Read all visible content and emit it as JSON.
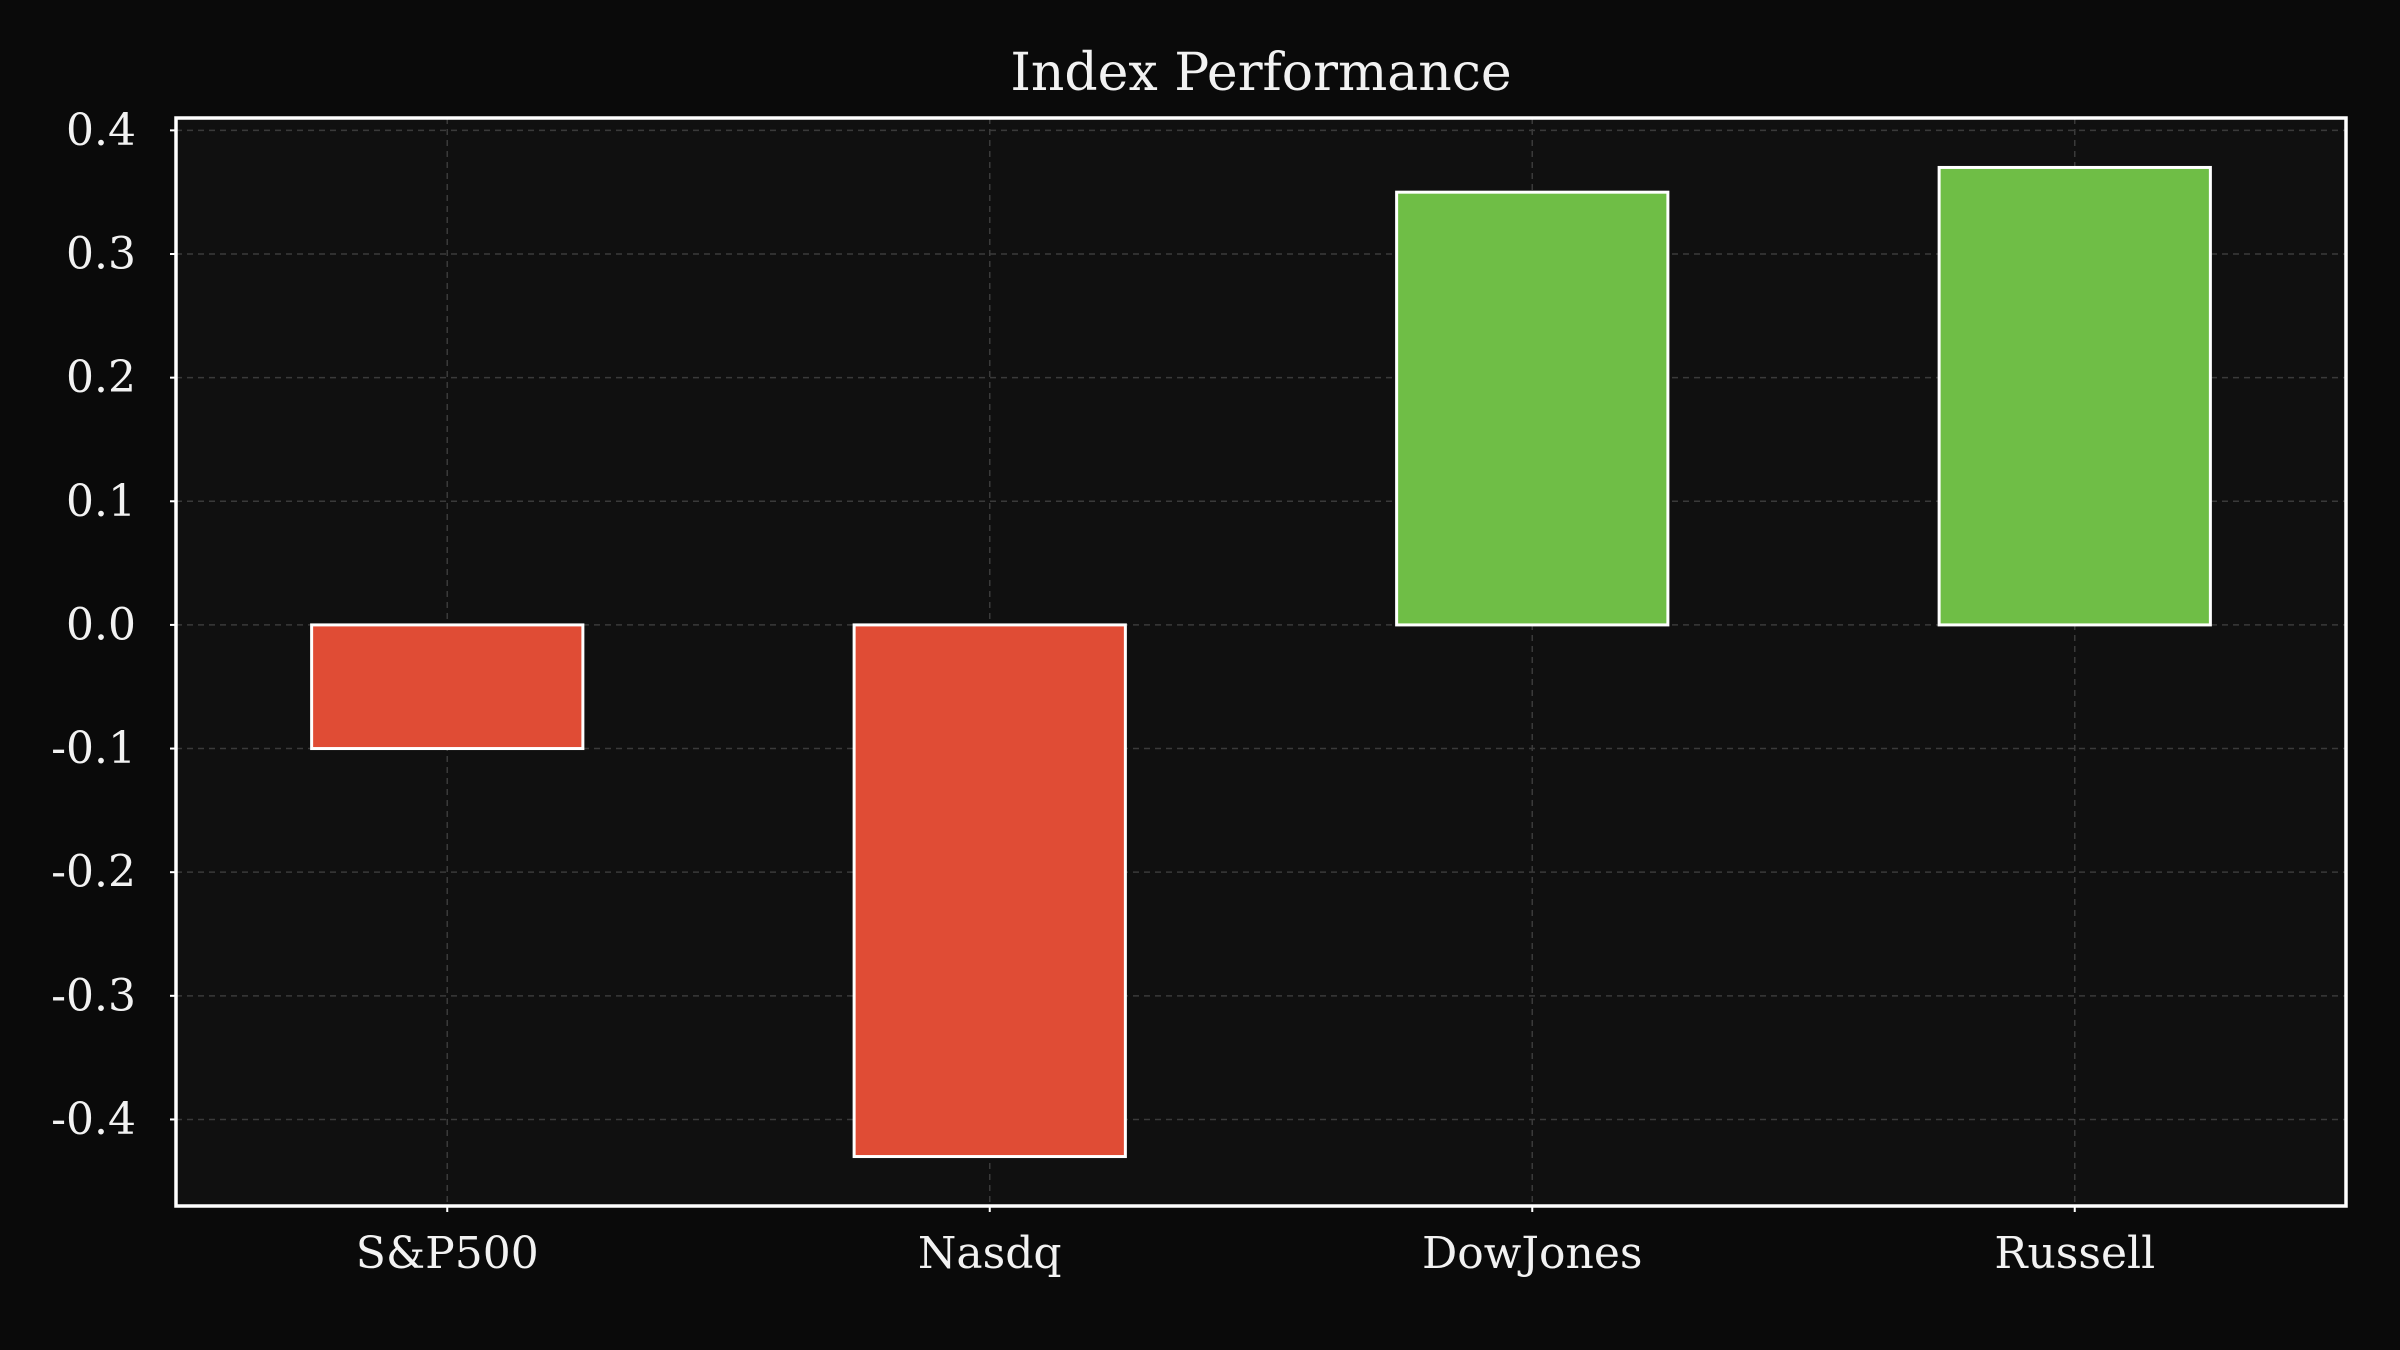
{
  "chart_data": {
    "type": "bar",
    "title": "Index Performance",
    "xlabel": "",
    "ylabel": "",
    "categories": [
      "S&P500",
      "Nasdq",
      "DowJones",
      "Russell"
    ],
    "values": [
      -0.1,
      -0.43,
      0.35,
      0.37
    ],
    "ylim": [
      -0.47,
      0.41
    ],
    "yticks": [
      -0.4,
      -0.3,
      -0.2,
      -0.1,
      0.0,
      0.1,
      0.2,
      0.3,
      0.4
    ],
    "ytick_labels": [
      "-0.4",
      "-0.3",
      "-0.2",
      "-0.1",
      "0.0",
      "0.1",
      "0.2",
      "0.3",
      "0.4"
    ],
    "grid": true,
    "legend": "none",
    "colors": {
      "page_background": "#0a0a0a",
      "plot_background": "#101010",
      "positive": "#6fbe46",
      "negative": "#e04c35",
      "bar_edge": "#ffffff",
      "axes_frame": "#ffffff",
      "grid": "#3a3a3a",
      "text": "#f2f2f2"
    }
  }
}
